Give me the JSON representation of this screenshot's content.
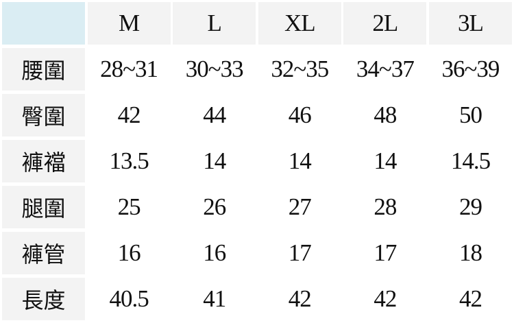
{
  "headers": [
    "M",
    "L",
    "XL",
    "2L",
    "3L"
  ],
  "colors": {
    "corner": "#daedf3",
    "header": "#f3f3f3",
    "label": "#f3f3f3"
  },
  "rows": [
    {
      "label": "腰圍",
      "values": [
        "28~31",
        "30~33",
        "32~35",
        "34~37",
        "36~39"
      ]
    },
    {
      "label": "臀圍",
      "values": [
        "42",
        "44",
        "46",
        "48",
        "50"
      ]
    },
    {
      "label": "褲襠",
      "values": [
        "13.5",
        "14",
        "14",
        "14",
        "14.5"
      ]
    },
    {
      "label": "腿圍",
      "values": [
        "25",
        "26",
        "27",
        "28",
        "29"
      ]
    },
    {
      "label": "褲管",
      "values": [
        "16",
        "16",
        "17",
        "17",
        "18"
      ]
    },
    {
      "label": "長度",
      "values": [
        "40.5",
        "41",
        "42",
        "42",
        "42"
      ]
    }
  ]
}
